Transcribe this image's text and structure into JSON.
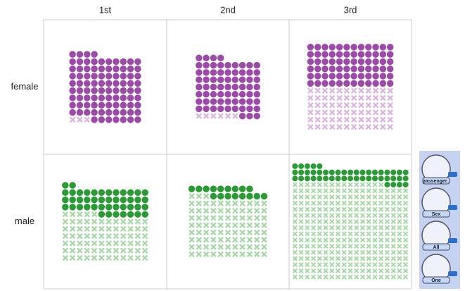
{
  "chart_data": {
    "type": "unit",
    "columns": [
      "1st",
      "2nd",
      "3rd"
    ],
    "rows": [
      "female",
      "male"
    ],
    "values": [
      [
        [
          91,
          3
        ],
        [
          70,
          6
        ],
        [
          72,
          72
        ]
      ],
      [
        [
          45,
          77
        ],
        [
          17,
          91
        ],
        [
          47,
          300
        ]
      ]
    ],
    "colors": [
      [
        "#9c4aa8",
        "#dbb3df"
      ],
      [
        "#2a9a34",
        "#a5d8a5"
      ]
    ]
  },
  "toolbar": [
    "passenger_",
    "Sex",
    "All",
    "One"
  ]
}
